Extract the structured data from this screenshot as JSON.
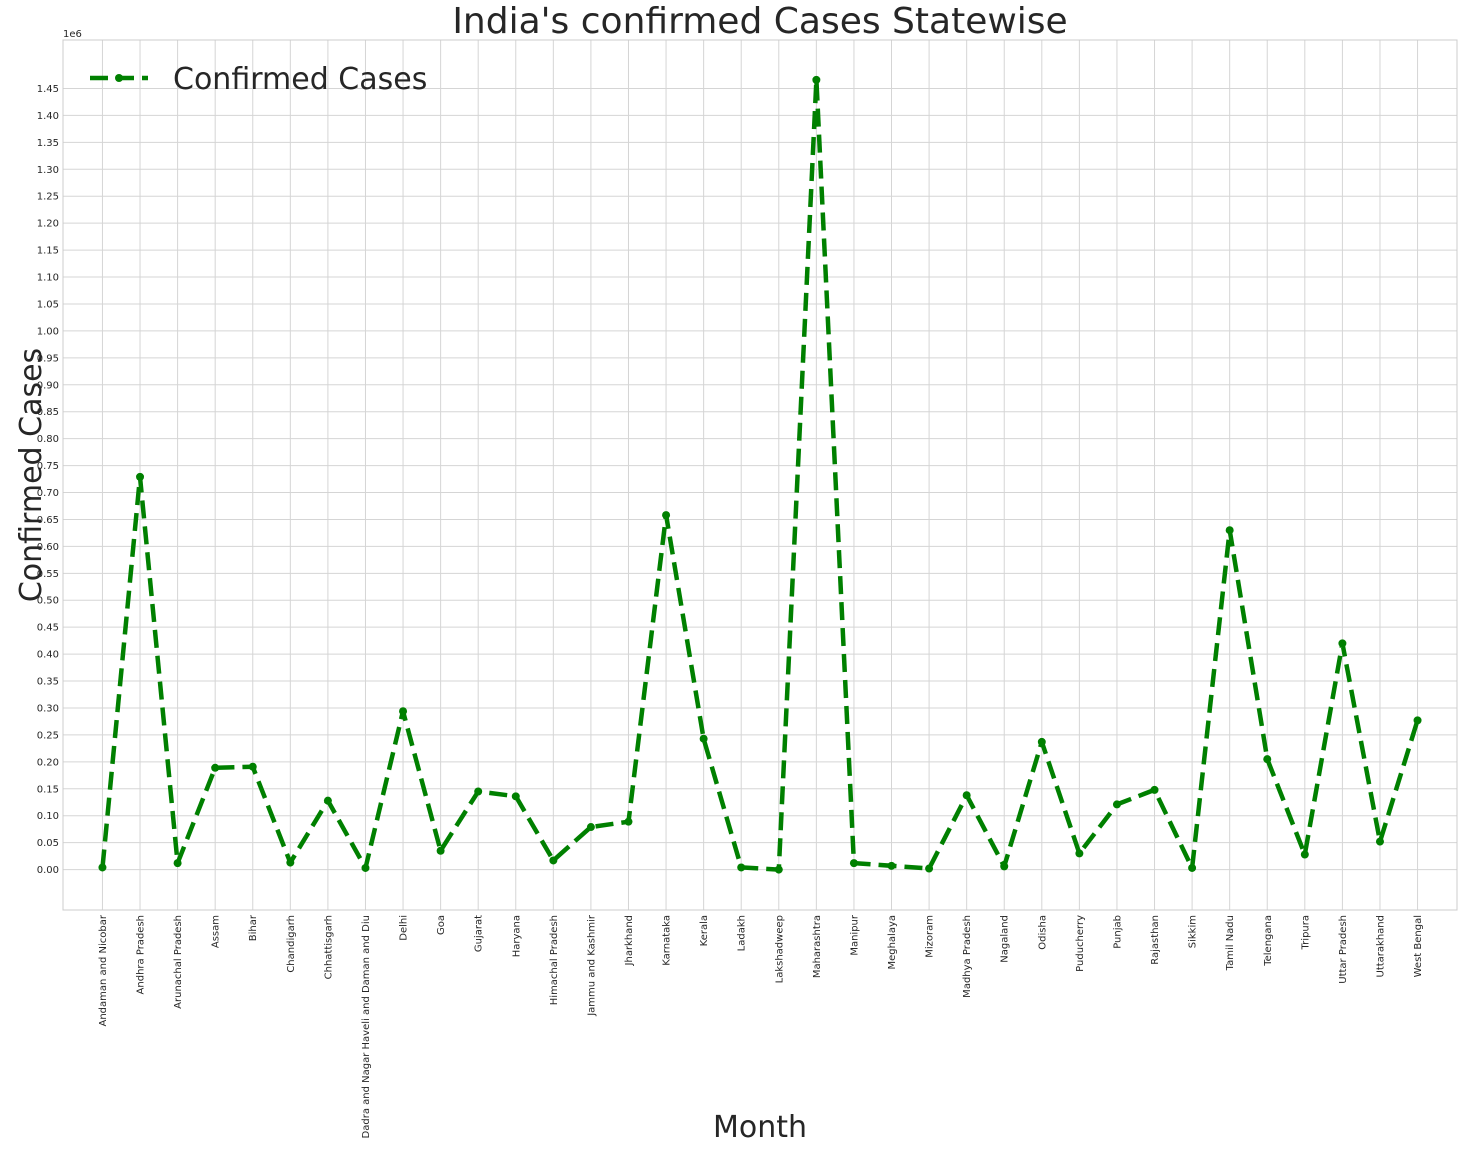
{
  "chart_data": {
    "type": "line",
    "title": "India's confirmed Cases Statewise",
    "xlabel": "Month",
    "ylabel": "Confirmed Cases",
    "y_offset_label": "1e6",
    "ylim": [
      -0.075,
      1.54
    ],
    "y_ticks": [
      "0.00",
      "0.05",
      "0.10",
      "0.15",
      "0.20",
      "0.25",
      "0.30",
      "0.35",
      "0.40",
      "0.45",
      "0.50",
      "0.55",
      "0.60",
      "0.65",
      "0.70",
      "0.75",
      "0.80",
      "0.85",
      "0.90",
      "0.95",
      "1.00",
      "1.05",
      "1.10",
      "1.15",
      "1.20",
      "1.25",
      "1.30",
      "1.35",
      "1.40",
      "1.45"
    ],
    "grid": true,
    "legend_position": "top-left",
    "categories": [
      "Andaman and Nicobar",
      "Andhra Pradesh",
      "Arunachal Pradesh",
      "Assam",
      "Bihar",
      "Chandigarh",
      "Chhattisgarh",
      "Dadra and Nagar Haveli and Daman and Diu",
      "Delhi",
      "Goa",
      "Gujarat",
      "Haryana",
      "Himachal Pradesh",
      "Jammu and Kashmir",
      "Jharkhand",
      "Karnataka",
      "Kerala",
      "Ladakh",
      "Lakshadweep",
      "Maharashtra",
      "Manipur",
      "Meghalaya",
      "Mizoram",
      "Madhya Pradesh",
      "Nagaland",
      "Odisha",
      "Puducherry",
      "Punjab",
      "Rajasthan",
      "Sikkim",
      "Tamil Nadu",
      "Telengana",
      "Tripura",
      "Uttar Pradesh",
      "Uttarakhand",
      "West Bengal"
    ],
    "series": [
      {
        "name": "Confirmed Cases",
        "color": "#008000",
        "line_style": "dashed",
        "marker": "circle",
        "values": [
          0.004,
          0.729,
          0.012,
          0.189,
          0.191,
          0.013,
          0.128,
          0.003,
          0.294,
          0.035,
          0.145,
          0.136,
          0.017,
          0.079,
          0.089,
          0.658,
          0.243,
          0.004,
          0.0,
          1.466,
          0.012,
          0.007,
          0.002,
          0.138,
          0.006,
          0.237,
          0.03,
          0.121,
          0.148,
          0.003,
          0.63,
          0.205,
          0.028,
          0.42,
          0.052,
          0.277
        ]
      }
    ]
  }
}
